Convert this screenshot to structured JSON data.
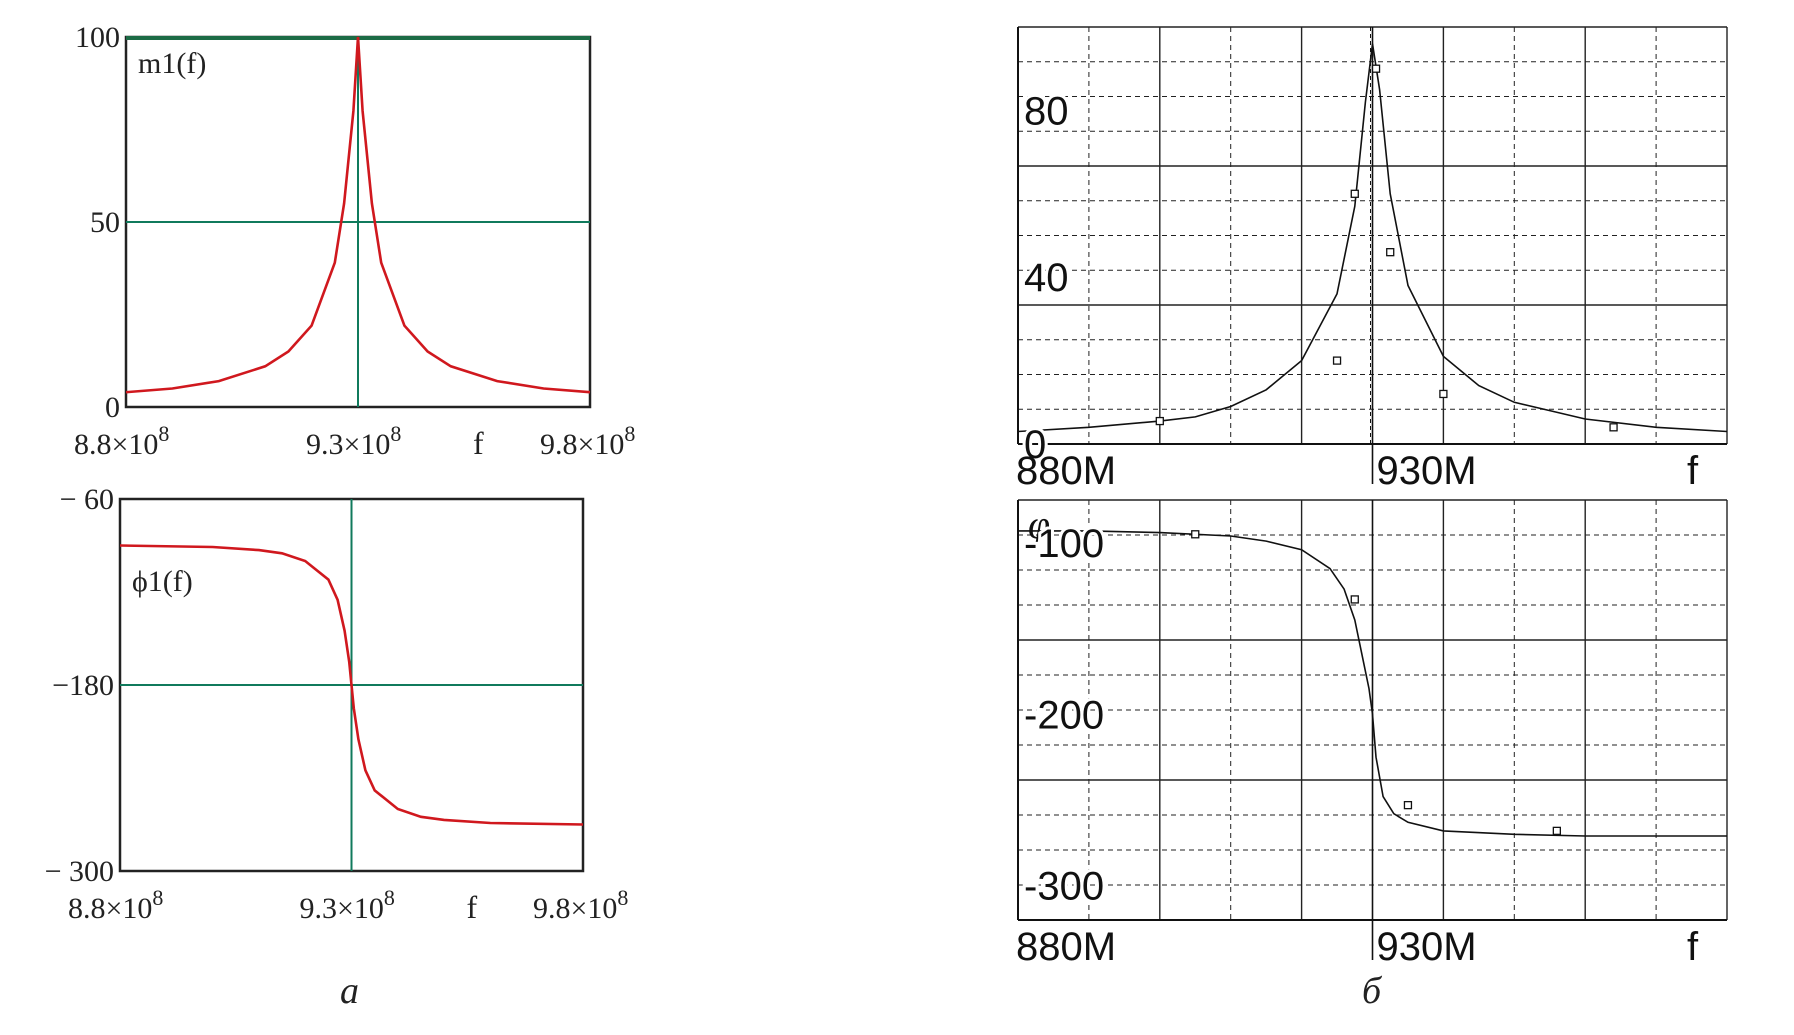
{
  "captions": {
    "left": "а",
    "right": "б"
  },
  "chart_data": [
    {
      "id": "a-top",
      "type": "line",
      "ylabel": "m1(f)",
      "xlabel": "f",
      "xlim": [
        880000000,
        980000000
      ],
      "ylim": [
        0,
        100
      ],
      "x_ticks": [
        "8.8×10^8",
        "9.3×10^8",
        "9.8×10^8"
      ],
      "y_ticks": [
        "100",
        "50",
        "0"
      ],
      "grid": true,
      "series": [
        {
          "x": [
            880000000,
            890000000,
            900000000,
            910000000,
            915000000,
            920000000,
            925000000,
            927000000,
            929000000,
            930000000,
            931000000,
            933000000,
            935000000,
            940000000,
            945000000,
            950000000,
            960000000,
            970000000,
            980000000
          ],
          "y": [
            4,
            5,
            7,
            11,
            15,
            22,
            39,
            55,
            80,
            100,
            80,
            55,
            39,
            22,
            15,
            11,
            7,
            5,
            4
          ]
        }
      ],
      "colors": {
        "line": "#d0181e",
        "grid": "#107a5c",
        "frame": "#222222",
        "top_line": "#1c6b45"
      }
    },
    {
      "id": "a-bottom",
      "type": "line",
      "ylabel": "ϕ1(f)",
      "xlabel": "f",
      "xlim": [
        880000000,
        980000000
      ],
      "ylim": [
        -300,
        -60
      ],
      "x_ticks": [
        "8.8×10^8",
        "9.3×10^8",
        "9.8×10^8"
      ],
      "y_ticks": [
        "− 60",
        "−180",
        "− 300"
      ],
      "grid": true,
      "series": [
        {
          "x": [
            880000000,
            900000000,
            910000000,
            915000000,
            920000000,
            925000000,
            927000000,
            928500000,
            929500000,
            930000000,
            930500000,
            931500000,
            933000000,
            935000000,
            940000000,
            945000000,
            950000000,
            960000000,
            980000000
          ],
          "y": [
            -90,
            -91,
            -93,
            -95,
            -100,
            -112,
            -125,
            -145,
            -165,
            -180,
            -195,
            -215,
            -235,
            -248,
            -260,
            -265,
            -267,
            -269,
            -270
          ]
        }
      ],
      "colors": {
        "line": "#d0181e",
        "grid": "#107a5c",
        "frame": "#222222"
      }
    },
    {
      "id": "b-top",
      "type": "line",
      "xlabel": "f",
      "xlim": [
        880000000,
        980000000
      ],
      "ylim": [
        0,
        100
      ],
      "x_ticks": [
        "880M",
        "930M"
      ],
      "y_ticks": [
        "80",
        "40",
        "0"
      ],
      "grid": true,
      "series": [
        {
          "x": [
            880000000,
            890000000,
            900000000,
            905000000,
            910000000,
            915000000,
            920000000,
            925000000,
            927500000,
            929000000,
            930000000,
            931000000,
            932500000,
            935000000,
            940000000,
            945000000,
            950000000,
            955000000,
            960000000,
            970000000,
            980000000
          ],
          "y": [
            3,
            4,
            5.5,
            6.5,
            9,
            13,
            20,
            36,
            57,
            82,
            96,
            85,
            60,
            38,
            21,
            14,
            10,
            8,
            6,
            4,
            3
          ],
          "markers_x": [
            900000000,
            925000000,
            927500000,
            930500000,
            932500000,
            940000000,
            964000000
          ],
          "markers_y": [
            5.5,
            20,
            60,
            90,
            46,
            12,
            4
          ]
        }
      ],
      "colors": {
        "line": "#222222",
        "grid": "#222222"
      }
    },
    {
      "id": "b-bottom",
      "type": "line",
      "ylabel": "φ",
      "xlabel": "f",
      "xlim": [
        880000000,
        980000000
      ],
      "ylim": [
        -320,
        -75
      ],
      "x_ticks": [
        "880M",
        "930M"
      ],
      "y_ticks": [
        "-100",
        "-200",
        "-300"
      ],
      "grid": true,
      "series": [
        {
          "x": [
            880000000,
            890000000,
            900000000,
            910000000,
            915000000,
            920000000,
            924000000,
            926000000,
            927500000,
            928500000,
            929500000,
            930000000,
            930500000,
            931500000,
            933000000,
            935000000,
            940000000,
            950000000,
            960000000,
            980000000
          ],
          "y": [
            -93,
            -93,
            -94,
            -96,
            -99,
            -104,
            -115,
            -127,
            -145,
            -165,
            -185,
            -200,
            -225,
            -248,
            -258,
            -263,
            -268,
            -270,
            -271,
            -271
          ],
          "markers_x": [
            905000000,
            927500000,
            935000000,
            956000000
          ],
          "markers_y": [
            -95,
            -133,
            -253,
            -268
          ]
        }
      ],
      "colors": {
        "line": "#222222",
        "grid": "#222222"
      }
    }
  ]
}
